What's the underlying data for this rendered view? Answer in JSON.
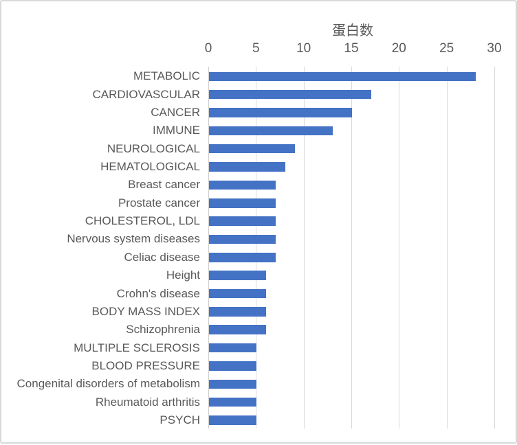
{
  "chart_data": {
    "type": "bar",
    "orientation": "horizontal",
    "title": "蛋白数",
    "categories": [
      "METABOLIC",
      "CARDIOVASCULAR",
      "CANCER",
      "IMMUNE",
      "NEUROLOGICAL",
      "HEMATOLOGICAL",
      "Breast cancer",
      "Prostate cancer",
      "CHOLESTEROL, LDL",
      "Nervous system diseases",
      "Celiac disease",
      "Height",
      "Crohn's disease",
      "BODY MASS INDEX",
      "Schizophrenia",
      "MULTIPLE SCLEROSIS",
      "BLOOD PRESSURE",
      "Congenital disorders of metabolism",
      "Rheumatoid arthritis",
      "PSYCH"
    ],
    "values": [
      28,
      17,
      15,
      13,
      9,
      8,
      7,
      7,
      7,
      7,
      7,
      6,
      6,
      6,
      6,
      5,
      5,
      5,
      5,
      5
    ],
    "xlim": [
      0,
      30
    ],
    "xticks": [
      0,
      5,
      10,
      15,
      20,
      25,
      30
    ],
    "grid": true,
    "legend": false,
    "bar_color": "#4472C4",
    "gridline_color": "#D9D9D9",
    "axis_line_color": "#CFCFCF",
    "text_color": "#595959"
  }
}
